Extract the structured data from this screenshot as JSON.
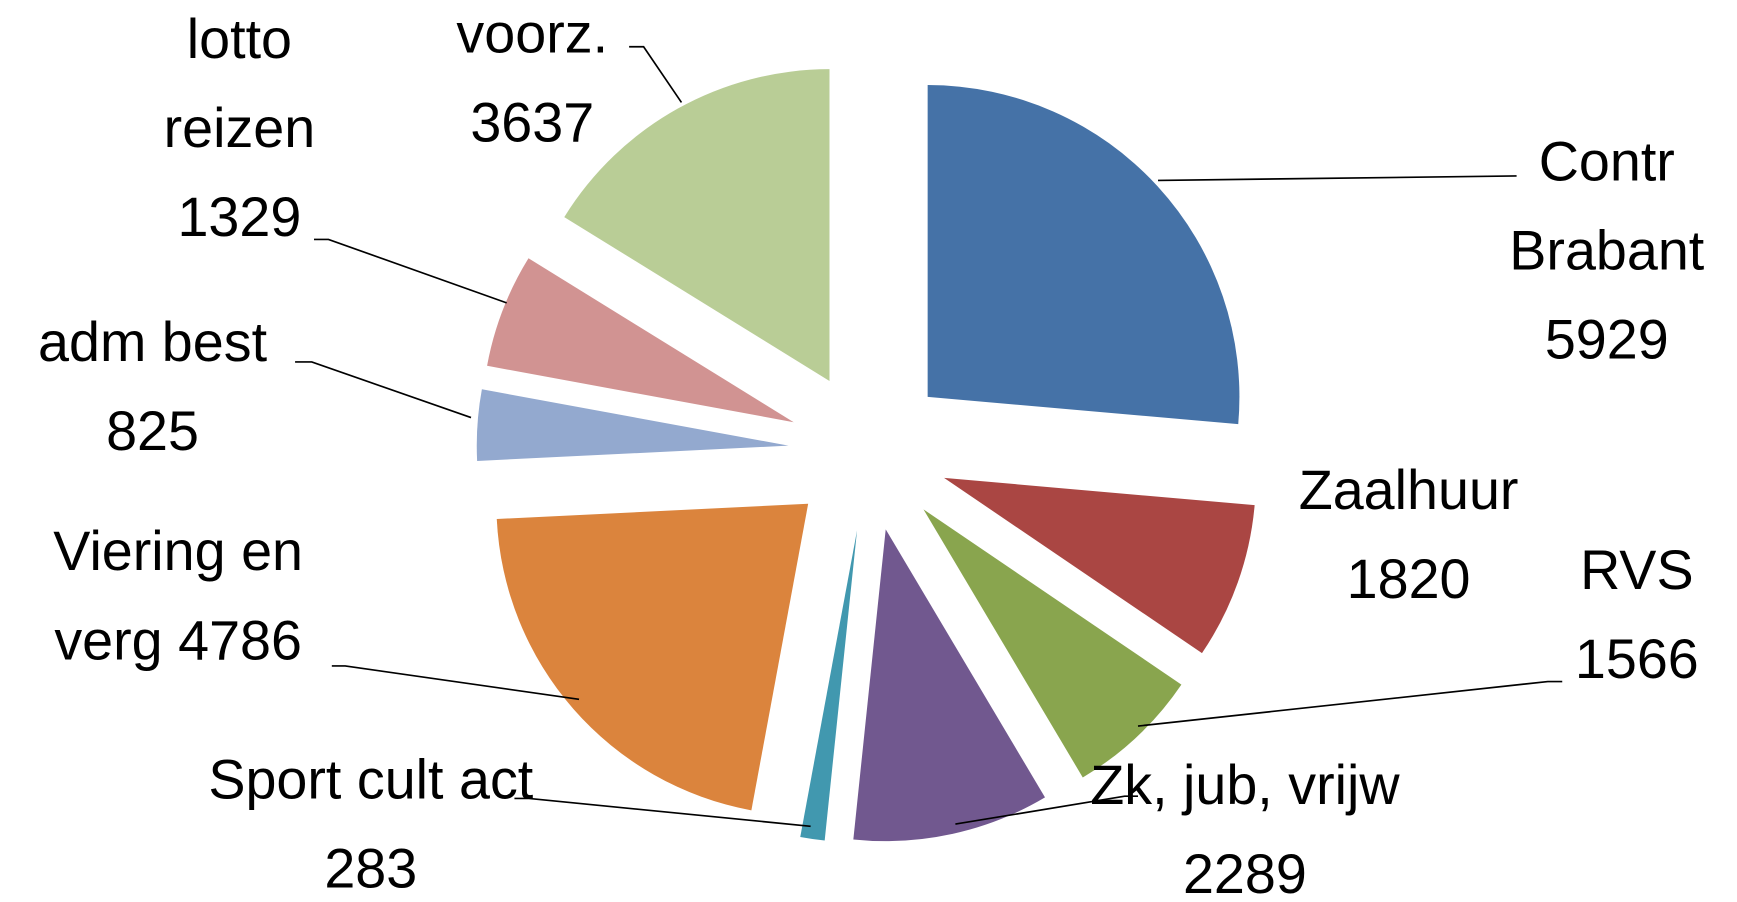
{
  "chart_data": {
    "type": "pie",
    "categories": [
      "Contr Brabant",
      "Zaalhuur",
      "RVS",
      "Zk, jub, vrijw",
      "Sport cult act",
      "Viering en verg",
      "adm best",
      "lotto reizen",
      "voorz."
    ],
    "values": [
      5929,
      1820,
      1566,
      2289,
      283,
      4786,
      825,
      1329,
      3637
    ],
    "colors": [
      "#4572a7",
      "#aa4643",
      "#89a54e",
      "#71588f",
      "#4198af",
      "#db843d",
      "#93a9cf",
      "#d19392",
      "#b9cd96"
    ]
  }
}
